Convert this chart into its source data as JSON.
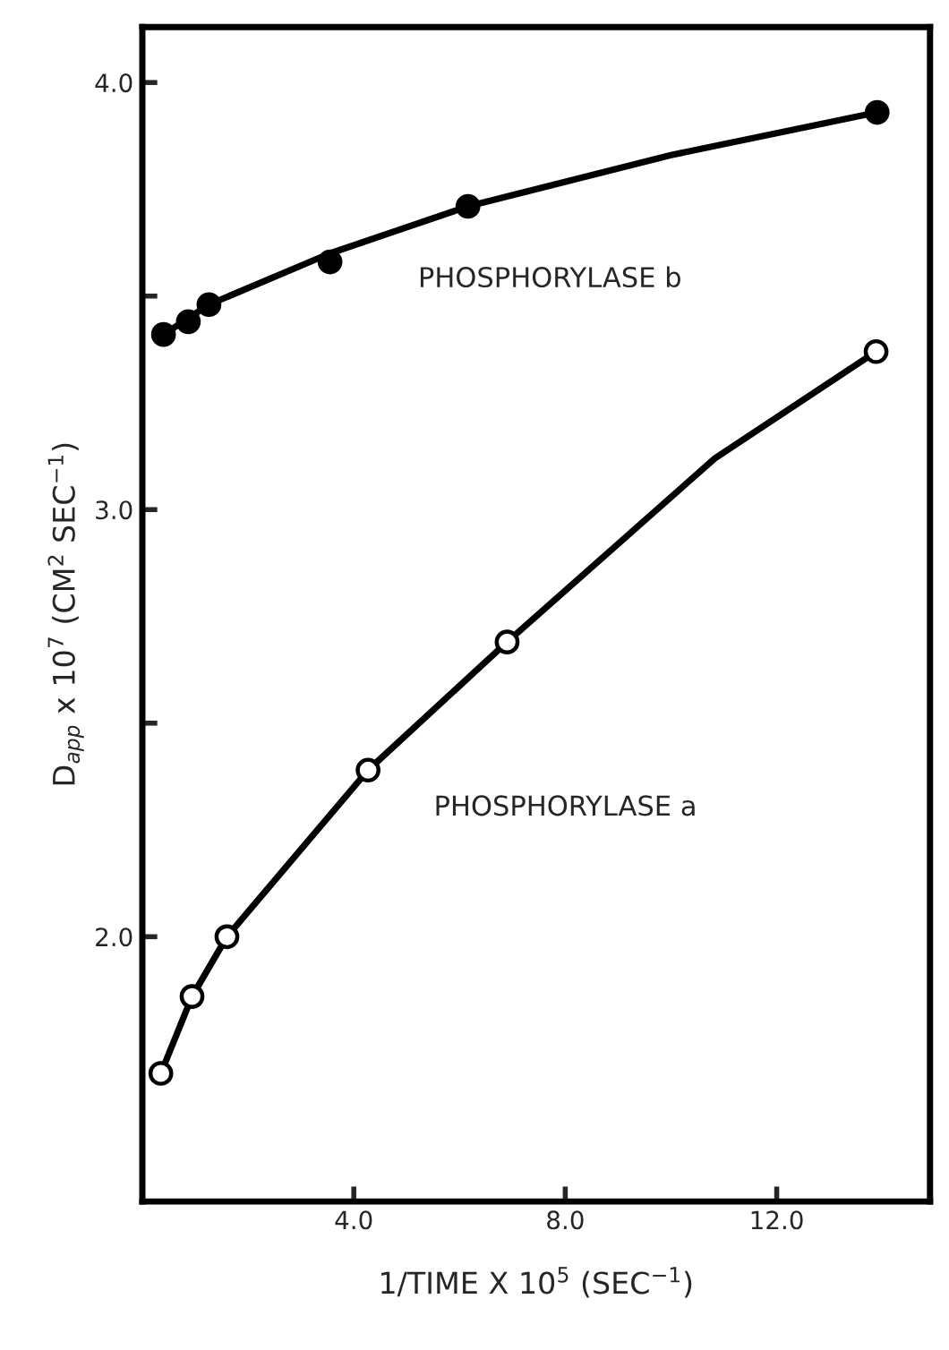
{
  "chart_data": {
    "type": "scatter",
    "xlabel": "1/TIME X 10$^{5}$ (SEC$^{−1}$)",
    "ylabel": "D$_{app}$ x 10$^{7}$ (CM$^{2}$ SEC$^{−1}$)",
    "xlim": [
      0,
      14.9
    ],
    "ylim": [
      1.38,
      4.13
    ],
    "xticks": [
      {
        "value": 4,
        "label": "4.0"
      },
      {
        "value": 8,
        "label": "8.0"
      },
      {
        "value": 12,
        "label": "12.0"
      }
    ],
    "yticks": [
      {
        "value": 2,
        "label": "2.0"
      },
      {
        "value": 2.5,
        "label": null
      },
      {
        "value": 3,
        "label": "3.0"
      },
      {
        "value": 3.5,
        "label": null
      },
      {
        "value": 4,
        "label": "4.0"
      }
    ],
    "grid": false,
    "series": [
      {
        "type": "line",
        "marker": "none",
        "color": "#000000",
        "x": [
          0.4,
          1.26,
          3.55,
          6.16,
          10.0,
          13.9
        ],
        "values": [
          3.41,
          3.48,
          3.6,
          3.71,
          3.83,
          3.93
        ]
      },
      {
        "type": "line",
        "marker": "none",
        "color": "#000000",
        "x": [
          0.35,
          0.94,
          1.6,
          4.27,
          6.9,
          10.83,
          13.88
        ],
        "values": [
          1.68,
          1.86,
          2.0,
          2.39,
          2.69,
          3.12,
          3.37
        ]
      },
      {
        "marker": "circle",
        "color": "#000000",
        "x": [
          0.4,
          0.87,
          1.26,
          3.55,
          6.16,
          13.9
        ],
        "values": [
          3.41,
          3.44,
          3.48,
          3.58,
          3.71,
          3.93
        ]
      },
      {
        "marker": "circle",
        "color": "#ffffff",
        "x": [
          0.35,
          0.94,
          1.6,
          4.27,
          6.9,
          13.88
        ],
        "values": [
          1.68,
          1.86,
          2.0,
          2.39,
          2.69,
          3.37
        ]
      }
    ],
    "annotations": [
      "PHOSPHORYLASE b",
      "PHOSPHORYLASE a"
    ]
  }
}
